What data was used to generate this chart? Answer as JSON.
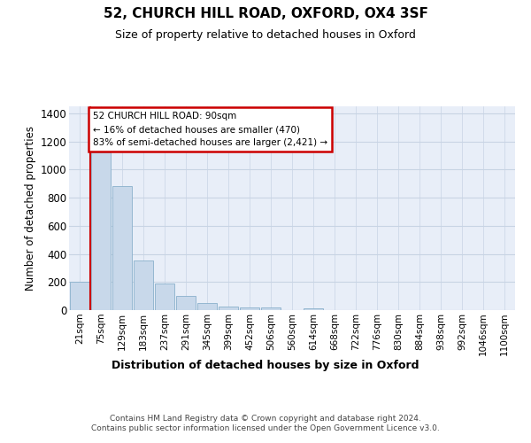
{
  "title_line1": "52, CHURCH HILL ROAD, OXFORD, OX4 3SF",
  "title_line2": "Size of property relative to detached houses in Oxford",
  "xlabel": "Distribution of detached houses by size in Oxford",
  "ylabel": "Number of detached properties",
  "categories": [
    "21sqm",
    "75sqm",
    "129sqm",
    "183sqm",
    "237sqm",
    "291sqm",
    "345sqm",
    "399sqm",
    "452sqm",
    "506sqm",
    "560sqm",
    "614sqm",
    "668sqm",
    "722sqm",
    "776sqm",
    "830sqm",
    "884sqm",
    "938sqm",
    "992sqm",
    "1046sqm",
    "1100sqm"
  ],
  "values": [
    200,
    1120,
    880,
    350,
    192,
    100,
    52,
    25,
    22,
    17,
    0,
    14,
    0,
    0,
    0,
    0,
    0,
    0,
    0,
    0,
    0
  ],
  "bar_color": "#c8d8ea",
  "bar_edge_color": "#8ab0cc",
  "vline_x": 0.5,
  "vline_color": "#cc0000",
  "vline_linewidth": 1.5,
  "annotation_text": "52 CHURCH HILL ROAD: 90sqm\n← 16% of detached houses are smaller (470)\n83% of semi-detached houses are larger (2,421) →",
  "annotation_box_facecolor": "#ffffff",
  "annotation_box_edgecolor": "#cc0000",
  "ylim": [
    0,
    1450
  ],
  "yticks": [
    0,
    200,
    400,
    600,
    800,
    1000,
    1200,
    1400
  ],
  "grid_color": "#c8d4e4",
  "bg_color": "#e8eef8",
  "footer_text": "Contains HM Land Registry data © Crown copyright and database right 2024.\nContains public sector information licensed under the Open Government Licence v3.0."
}
